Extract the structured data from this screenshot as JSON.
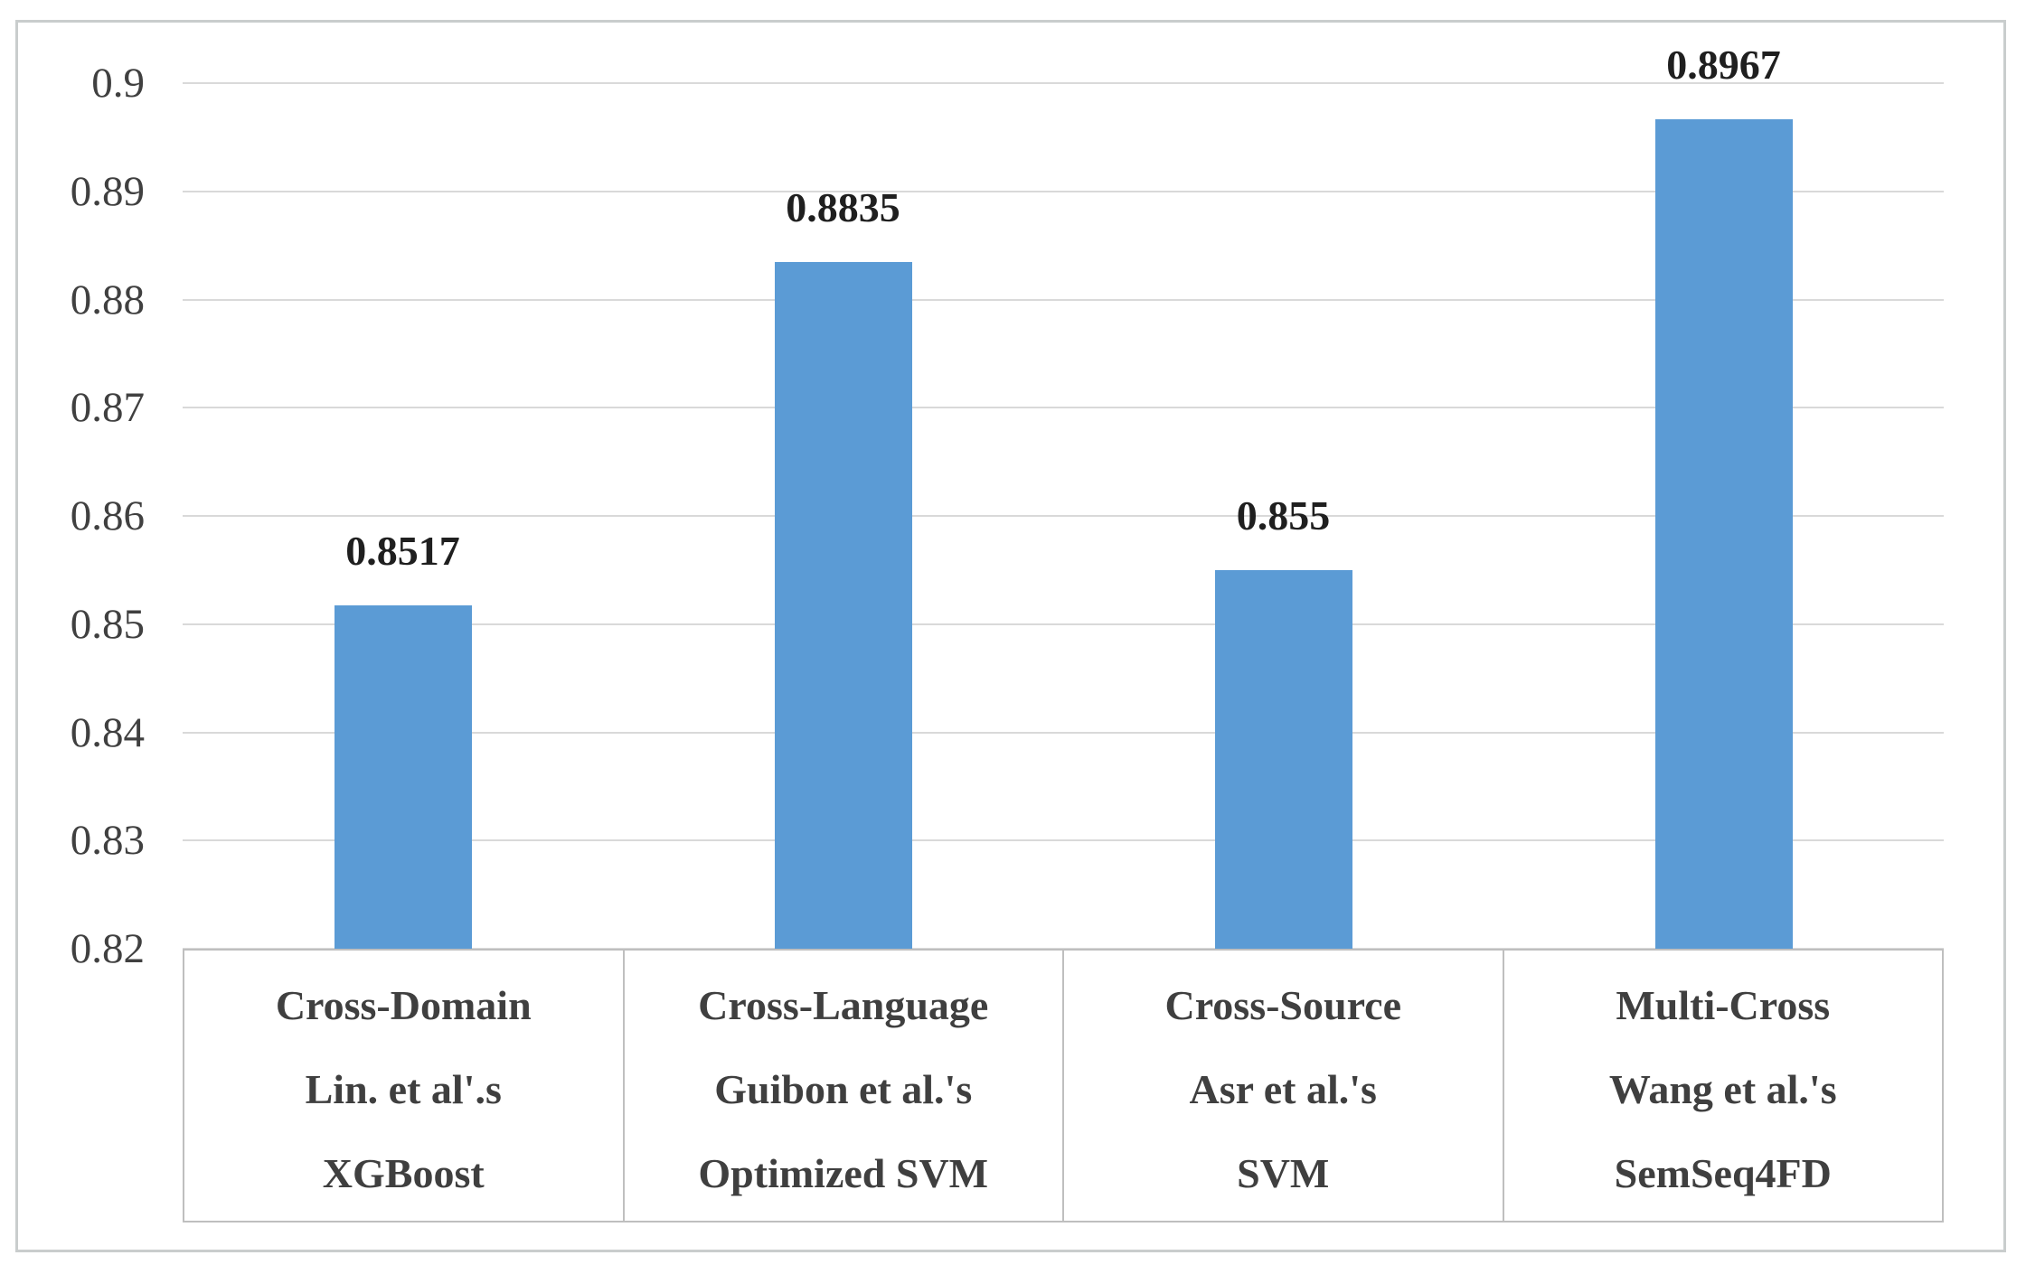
{
  "chart_data": {
    "type": "bar",
    "title": "",
    "xlabel": "",
    "ylabel": "",
    "categories": [
      {
        "lines": [
          "Cross-Domain",
          "Lin. et al'.s",
          "XGBoost"
        ]
      },
      {
        "lines": [
          "Cross-Language",
          "Guibon et al.'s",
          "Optimized SVM"
        ]
      },
      {
        "lines": [
          "Cross-Source",
          "Asr et al.'s",
          "SVM"
        ]
      },
      {
        "lines": [
          "Multi-Cross",
          "Wang et al.'s",
          "SemSeq4FD"
        ]
      }
    ],
    "values": [
      0.8517,
      0.8835,
      0.855,
      0.8967
    ],
    "value_labels": [
      "0.8517",
      "0.8835",
      "0.855",
      "0.8967"
    ],
    "ylim": [
      0.82,
      0.9
    ],
    "ytick_step": 0.01,
    "yticks": [
      "0.9",
      "0.89",
      "0.88",
      "0.87",
      "0.86",
      "0.85",
      "0.84",
      "0.83",
      "0.82"
    ],
    "grid": true,
    "legend": "none",
    "bar_color": "#5b9bd5",
    "gridline_color": "#d9d9d9",
    "tick_label_color": "#404040",
    "category_label_color": "#3f3f3f",
    "value_label_color": "#1f1f1f",
    "frame_border_color": "#c9cdcd",
    "category_box_border_color": "#bfbfbf"
  }
}
